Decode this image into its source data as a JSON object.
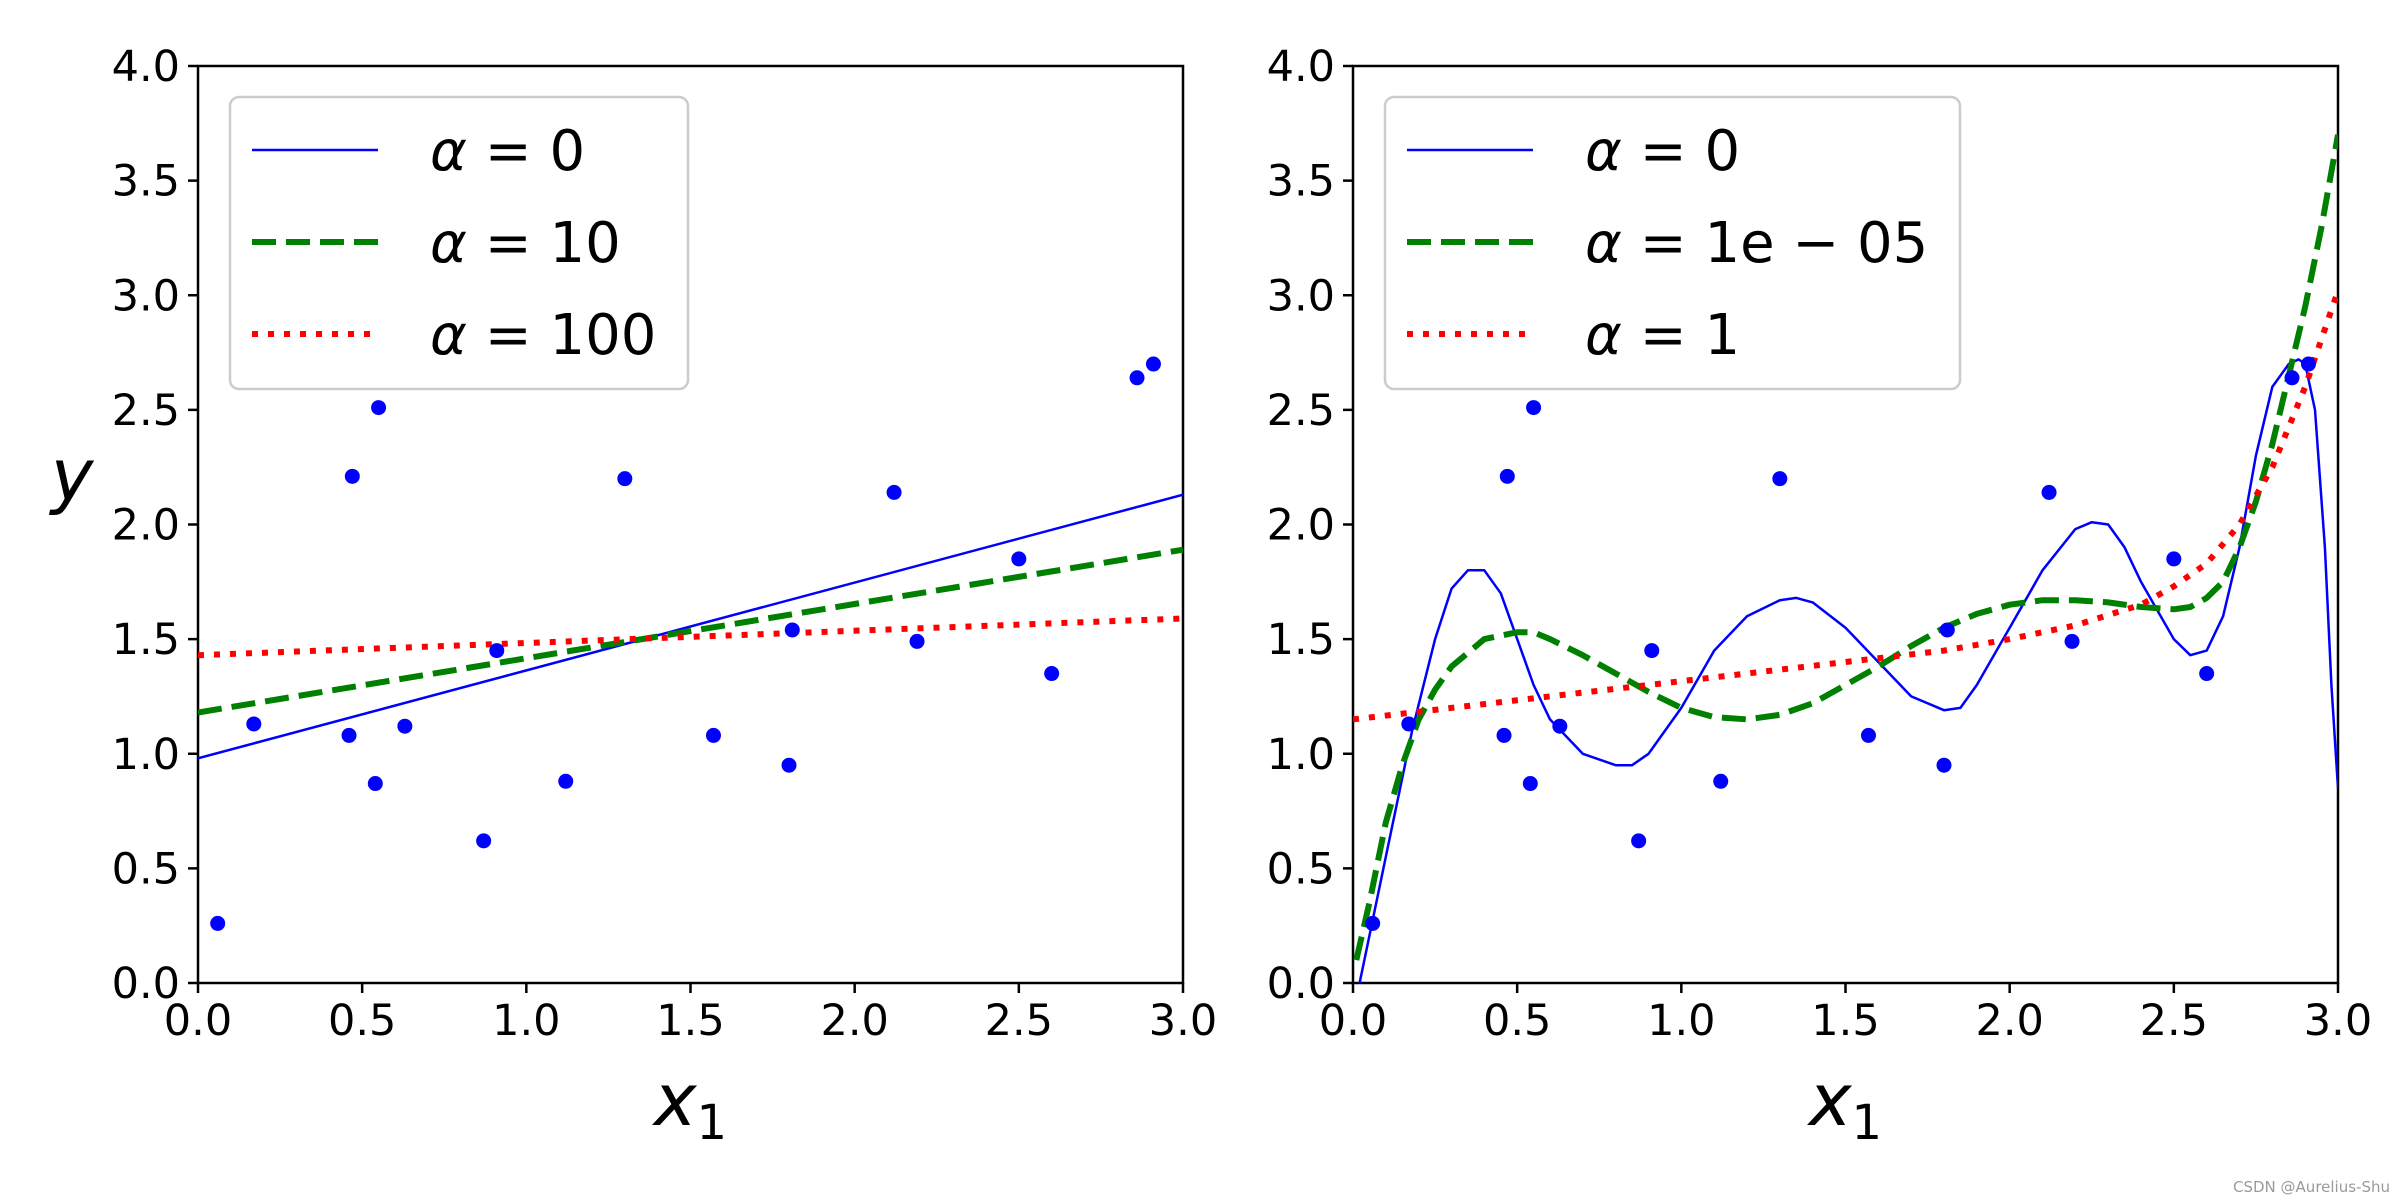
{
  "chart_data": [
    {
      "type": "line",
      "panel": "left",
      "title": "",
      "xlabel": "x",
      "xlabel_sub": "1",
      "ylabel": "y",
      "xlim": [
        0,
        3
      ],
      "ylim": [
        0,
        4
      ],
      "xticks": [
        0,
        0.5,
        1,
        1.5,
        2,
        2.5,
        3
      ],
      "xtick_labels": [
        "0.0",
        "0.5",
        "1.0",
        "1.5",
        "2.0",
        "2.5",
        "3.0"
      ],
      "yticks": [
        0,
        0.5,
        1,
        1.5,
        2,
        2.5,
        3,
        3.5,
        4
      ],
      "ytick_labels": [
        "0.0",
        "0.5",
        "1.0",
        "1.5",
        "2.0",
        "2.5",
        "3.0",
        "3.5",
        "4.0"
      ],
      "legend_position": "top-left",
      "scatter": {
        "color": "#0000ff",
        "x": [
          0.06,
          0.17,
          0.46,
          0.47,
          0.54,
          0.55,
          0.63,
          0.87,
          0.91,
          1.12,
          1.3,
          1.57,
          1.8,
          1.81,
          2.12,
          2.19,
          2.5,
          2.6,
          2.86,
          2.91
        ],
        "y": [
          0.26,
          1.13,
          1.08,
          2.21,
          0.87,
          2.51,
          1.12,
          0.62,
          1.45,
          0.88,
          2.2,
          1.08,
          0.95,
          1.54,
          2.14,
          1.49,
          1.85,
          1.35,
          2.64,
          2.7
        ]
      },
      "series": [
        {
          "name": "α = 0",
          "legend_var": "α",
          "legend_value": "0",
          "color": "#0000ff",
          "style": "solid",
          "x": [
            0,
            3
          ],
          "y": [
            0.98,
            2.13
          ]
        },
        {
          "name": "α = 10",
          "legend_var": "α",
          "legend_value": "10",
          "color": "#008000",
          "style": "dashed",
          "x": [
            0,
            3
          ],
          "y": [
            1.18,
            1.89
          ]
        },
        {
          "name": "α = 100",
          "legend_var": "α",
          "legend_value": "100",
          "color": "#ff0000",
          "style": "dotted",
          "x": [
            0,
            3
          ],
          "y": [
            1.43,
            1.59
          ]
        }
      ]
    },
    {
      "type": "line",
      "panel": "right",
      "title": "",
      "xlabel": "x",
      "xlabel_sub": "1",
      "ylabel": "",
      "xlim": [
        0,
        3
      ],
      "ylim": [
        0,
        4
      ],
      "xticks": [
        0,
        0.5,
        1,
        1.5,
        2,
        2.5,
        3
      ],
      "xtick_labels": [
        "0.0",
        "0.5",
        "1.0",
        "1.5",
        "2.0",
        "2.5",
        "3.0"
      ],
      "yticks": [
        0,
        0.5,
        1,
        1.5,
        2,
        2.5,
        3,
        3.5,
        4
      ],
      "ytick_labels": [
        "0.0",
        "0.5",
        "1.0",
        "1.5",
        "2.0",
        "2.5",
        "3.0",
        "3.5",
        "4.0"
      ],
      "legend_position": "top-left",
      "scatter": {
        "color": "#0000ff",
        "x": [
          0.06,
          0.17,
          0.46,
          0.47,
          0.54,
          0.55,
          0.63,
          0.87,
          0.91,
          1.12,
          1.3,
          1.57,
          1.8,
          1.81,
          2.12,
          2.19,
          2.5,
          2.6,
          2.86,
          2.91
        ],
        "y": [
          0.26,
          1.13,
          1.08,
          2.21,
          0.87,
          2.51,
          1.12,
          0.62,
          1.45,
          0.88,
          2.2,
          1.08,
          0.95,
          1.54,
          2.14,
          1.49,
          1.85,
          1.35,
          2.64,
          2.7
        ]
      },
      "series": [
        {
          "name": "α = 0",
          "legend_var": "α",
          "legend_value": "0",
          "color": "#0000ff",
          "style": "solid",
          "x": [
            0.02,
            0.1,
            0.18,
            0.25,
            0.3,
            0.35,
            0.4,
            0.45,
            0.5,
            0.55,
            0.6,
            0.7,
            0.8,
            0.85,
            0.9,
            1.0,
            1.1,
            1.2,
            1.3,
            1.35,
            1.4,
            1.5,
            1.6,
            1.7,
            1.8,
            1.85,
            1.9,
            2.0,
            2.1,
            2.2,
            2.25,
            2.3,
            2.35,
            2.4,
            2.5,
            2.55,
            2.6,
            2.65,
            2.7,
            2.75,
            2.8,
            2.85,
            2.88,
            2.9,
            2.93,
            2.96,
            2.98,
            3.0
          ],
          "y": [
            0.0,
            0.55,
            1.1,
            1.5,
            1.72,
            1.8,
            1.8,
            1.7,
            1.5,
            1.3,
            1.15,
            1.0,
            0.95,
            0.95,
            1.0,
            1.2,
            1.45,
            1.6,
            1.67,
            1.68,
            1.66,
            1.55,
            1.4,
            1.25,
            1.19,
            1.2,
            1.3,
            1.55,
            1.8,
            1.98,
            2.01,
            2.0,
            1.9,
            1.75,
            1.5,
            1.43,
            1.45,
            1.6,
            1.9,
            2.3,
            2.6,
            2.7,
            2.72,
            2.7,
            2.5,
            1.9,
            1.3,
            0.85
          ]
        },
        {
          "name": "α = 1e − 05",
          "legend_var": "α",
          "legend_value": "1e − 05",
          "color": "#008000",
          "style": "dashed",
          "x": [
            0.01,
            0.05,
            0.1,
            0.15,
            0.2,
            0.25,
            0.3,
            0.4,
            0.5,
            0.55,
            0.6,
            0.7,
            0.8,
            0.9,
            1.0,
            1.1,
            1.2,
            1.3,
            1.4,
            1.5,
            1.6,
            1.7,
            1.8,
            1.9,
            2.0,
            2.1,
            2.2,
            2.3,
            2.4,
            2.5,
            2.55,
            2.6,
            2.65,
            2.7,
            2.75,
            2.8,
            2.85,
            2.9,
            2.95,
            3.0
          ],
          "y": [
            0.1,
            0.35,
            0.7,
            0.95,
            1.15,
            1.28,
            1.38,
            1.5,
            1.53,
            1.53,
            1.5,
            1.43,
            1.35,
            1.27,
            1.2,
            1.16,
            1.15,
            1.17,
            1.22,
            1.3,
            1.38,
            1.47,
            1.55,
            1.61,
            1.65,
            1.67,
            1.67,
            1.66,
            1.64,
            1.63,
            1.64,
            1.68,
            1.75,
            1.9,
            2.1,
            2.35,
            2.65,
            2.95,
            3.3,
            3.7
          ]
        },
        {
          "name": "α = 1",
          "legend_var": "α",
          "legend_value": "1",
          "color": "#ff0000",
          "style": "dotted",
          "x": [
            0,
            0.3,
            0.6,
            0.9,
            1.2,
            1.5,
            1.8,
            2.0,
            2.2,
            2.4,
            2.5,
            2.6,
            2.7,
            2.8,
            2.9,
            3.0
          ],
          "y": [
            1.15,
            1.2,
            1.25,
            1.3,
            1.35,
            1.4,
            1.45,
            1.5,
            1.56,
            1.65,
            1.73,
            1.83,
            2.0,
            2.25,
            2.6,
            3.02
          ]
        }
      ]
    }
  ],
  "footer": {
    "watermark": "CSDN @Aurelius-Shu"
  }
}
